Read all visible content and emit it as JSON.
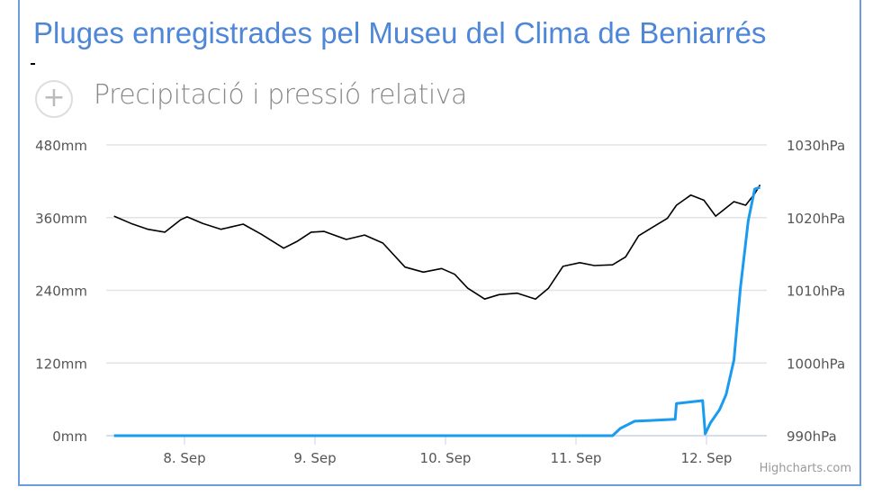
{
  "page_title": "Pluges enregistrades pel Museu del Clima de Beniarrés",
  "credits": "Highcharts.com",
  "chart_data": {
    "type": "line",
    "title": "Precipitació i pressió relativa",
    "x_unit": "day of September",
    "xlim": [
      7.46,
      12.41
    ],
    "x_ticks": [
      {
        "value": 8,
        "label": "8. Sep"
      },
      {
        "value": 9,
        "label": "9. Sep"
      },
      {
        "value": 10,
        "label": "10. Sep"
      },
      {
        "value": 11,
        "label": "11. Sep"
      },
      {
        "value": 12,
        "label": "12. Sep"
      }
    ],
    "y_left": {
      "ylim": [
        0,
        480
      ],
      "ticks": [
        {
          "value": 0,
          "label": "0mm"
        },
        {
          "value": 120,
          "label": "120mm"
        },
        {
          "value": 240,
          "label": "240mm"
        },
        {
          "value": 360,
          "label": "360mm"
        },
        {
          "value": 480,
          "label": "480mm"
        }
      ]
    },
    "y_right": {
      "ylim": [
        990,
        1030
      ],
      "ticks": [
        {
          "value": 990,
          "label": "990hPa"
        },
        {
          "value": 1000,
          "label": "1000hPa"
        },
        {
          "value": 1010,
          "label": "1010hPa"
        },
        {
          "value": 1020,
          "label": "1020hPa"
        },
        {
          "value": 1030,
          "label": "1030hPa"
        }
      ]
    },
    "grid": true,
    "series": [
      {
        "name": "Pressió",
        "axis": "right",
        "color": "#000000",
        "x": [
          7.46,
          7.59,
          7.72,
          7.85,
          7.97,
          8.02,
          8.14,
          8.28,
          8.45,
          8.59,
          8.76,
          8.86,
          8.97,
          9.07,
          9.24,
          9.38,
          9.52,
          9.69,
          9.83,
          9.97,
          10.07,
          10.17,
          10.3,
          10.41,
          10.55,
          10.69,
          10.79,
          10.9,
          11.03,
          11.14,
          11.28,
          11.38,
          11.48,
          11.59,
          11.7,
          11.77,
          11.88,
          11.98,
          12.07,
          12.14,
          12.21,
          12.3,
          12.37,
          12.41
        ],
        "values": [
          1020.2,
          1019.2,
          1018.4,
          1018.0,
          1019.7,
          1020.1,
          1019.2,
          1018.4,
          1019.1,
          1017.7,
          1015.8,
          1016.7,
          1018.0,
          1018.1,
          1017.0,
          1017.6,
          1016.5,
          1013.2,
          1012.5,
          1013.0,
          1012.2,
          1010.3,
          1008.8,
          1009.4,
          1009.6,
          1008.8,
          1010.3,
          1013.3,
          1013.8,
          1013.4,
          1013.5,
          1014.6,
          1017.5,
          1018.7,
          1019.9,
          1021.7,
          1023.1,
          1022.4,
          1020.2,
          1021.2,
          1022.2,
          1021.7,
          1023.3,
          1024.5
        ]
      },
      {
        "name": "Precipitació",
        "axis": "left",
        "color": "#1a9bf0",
        "x": [
          7.46,
          11.28,
          11.34,
          11.45,
          11.55,
          11.76,
          11.77,
          11.97,
          11.99,
          12.03,
          12.1,
          12.15,
          12.21,
          12.26,
          12.32,
          12.37,
          12.41
        ],
        "values": [
          0,
          0,
          12,
          24,
          25,
          27,
          53,
          58,
          3,
          21,
          43,
          68,
          125,
          244,
          355,
          407,
          410
        ]
      }
    ]
  }
}
